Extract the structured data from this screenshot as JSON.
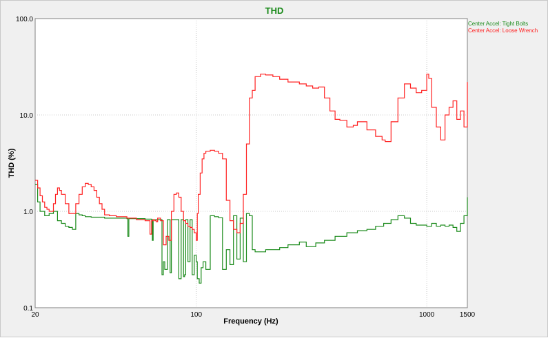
{
  "chart_data": {
    "type": "line",
    "title": "THD",
    "title_color": "#1a8a1a",
    "xlabel": "Frequency (Hz)",
    "ylabel": "THD (%)",
    "x_scale": "log",
    "y_scale": "log",
    "xlim": [
      20,
      1500
    ],
    "ylim": [
      0.1,
      100
    ],
    "x_ticks": [
      {
        "value": 20,
        "label": "20"
      },
      {
        "value": 100,
        "label": "100"
      },
      {
        "value": 1000,
        "label": "1000"
      },
      {
        "value": 1500,
        "label": "1500"
      }
    ],
    "y_ticks": [
      {
        "value": 0.1,
        "label": "0.1"
      },
      {
        "value": 1,
        "label": "1.0"
      },
      {
        "value": 10,
        "label": "10.0"
      },
      {
        "value": 100,
        "label": "100.0"
      }
    ],
    "grid": true,
    "legend_position": "top-right",
    "series": [
      {
        "name": "Center Accel: Tight Bolts",
        "color": "#1a8a1a",
        "x": [
          20,
          20.5,
          21,
          22,
          23,
          24,
          25,
          26,
          27,
          28,
          29,
          30,
          31,
          32,
          33,
          35,
          40,
          45,
          50,
          50.5,
          51,
          55,
          60,
          64,
          64.5,
          65,
          66,
          67,
          68,
          69,
          70,
          71,
          72,
          73,
          75,
          77,
          78,
          79,
          80,
          82,
          84,
          86,
          88,
          89,
          90,
          92,
          94,
          96,
          98,
          100,
          101,
          103,
          105,
          107,
          110,
          115,
          120,
          125,
          130,
          135,
          140,
          145,
          150,
          155,
          160,
          165,
          170,
          175,
          180,
          190,
          200,
          215,
          230,
          250,
          280,
          300,
          330,
          360,
          400,
          450,
          500,
          550,
          600,
          650,
          700,
          750,
          800,
          850,
          900,
          950,
          1000,
          1050,
          1100,
          1150,
          1200,
          1250,
          1300,
          1350,
          1400,
          1450,
          1500
        ],
        "y": [
          1.9,
          1.25,
          1.0,
          0.9,
          0.95,
          1.0,
          0.8,
          0.75,
          0.7,
          0.68,
          0.65,
          0.95,
          0.92,
          0.9,
          0.88,
          0.87,
          0.85,
          0.85,
          0.84,
          0.55,
          0.84,
          0.84,
          0.83,
          0.82,
          0.5,
          0.82,
          0.82,
          0.82,
          0.82,
          0.82,
          0.82,
          0.22,
          0.3,
          0.25,
          0.82,
          0.23,
          0.82,
          0.82,
          0.82,
          0.82,
          0.2,
          0.82,
          0.21,
          0.22,
          0.82,
          0.3,
          0.82,
          0.22,
          0.35,
          0.3,
          0.2,
          0.18,
          0.26,
          0.3,
          0.25,
          0.9,
          0.88,
          0.86,
          0.25,
          0.4,
          0.28,
          0.9,
          0.32,
          0.85,
          0.3,
          0.95,
          0.9,
          0.4,
          0.38,
          0.38,
          0.4,
          0.4,
          0.42,
          0.45,
          0.48,
          0.43,
          0.47,
          0.5,
          0.55,
          0.6,
          0.63,
          0.65,
          0.7,
          0.75,
          0.82,
          0.9,
          0.85,
          0.75,
          0.72,
          0.72,
          0.7,
          0.75,
          0.7,
          0.72,
          0.7,
          0.72,
          0.68,
          0.62,
          0.75,
          0.9,
          1.4
        ]
      },
      {
        "name": "Center Accel: Loose Wrench",
        "color": "#ff2020",
        "x": [
          20,
          20.5,
          21,
          21.5,
          22,
          22.5,
          23,
          23.5,
          24,
          24.5,
          25,
          25.5,
          26,
          27,
          28,
          29,
          30,
          31,
          32,
          33,
          34,
          35,
          36,
          37,
          38,
          39,
          40,
          42,
          45,
          50,
          55,
          60,
          62,
          63,
          64,
          65,
          66,
          67,
          68,
          70,
          72,
          74,
          76,
          78,
          80,
          82,
          84,
          86,
          88,
          90,
          92,
          94,
          96,
          98,
          100,
          101,
          102,
          104,
          106,
          108,
          110,
          115,
          120,
          125,
          130,
          135,
          140,
          145,
          150,
          155,
          160,
          165,
          170,
          175,
          180,
          190,
          200,
          215,
          230,
          250,
          280,
          300,
          320,
          340,
          360,
          380,
          400,
          420,
          450,
          480,
          500,
          550,
          600,
          640,
          660,
          700,
          750,
          800,
          850,
          900,
          950,
          1000,
          1020,
          1050,
          1100,
          1150,
          1200,
          1250,
          1300,
          1350,
          1400,
          1450,
          1500
        ],
        "y": [
          2.1,
          1.75,
          1.45,
          1.25,
          1.1,
          1.05,
          1.0,
          1.0,
          1.2,
          1.5,
          1.75,
          1.65,
          1.5,
          1.2,
          0.95,
          0.95,
          1.2,
          1.5,
          1.8,
          1.95,
          1.9,
          1.8,
          1.65,
          1.4,
          1.2,
          1.05,
          0.92,
          0.9,
          0.88,
          0.85,
          0.82,
          0.8,
          0.8,
          0.58,
          0.8,
          0.82,
          0.8,
          0.78,
          0.85,
          0.8,
          0.45,
          0.55,
          0.5,
          1.0,
          1.5,
          1.55,
          1.4,
          1.0,
          0.8,
          0.75,
          0.7,
          0.68,
          0.65,
          0.6,
          0.5,
          0.95,
          1.5,
          2.5,
          3.5,
          4.0,
          4.2,
          4.3,
          4.2,
          4.0,
          3.5,
          1.3,
          0.8,
          0.65,
          0.6,
          0.75,
          1.5,
          5.0,
          15.0,
          18.0,
          25.0,
          26.5,
          26.0,
          25.0,
          23.5,
          22.0,
          21.0,
          20.0,
          19.0,
          19.5,
          15.0,
          11.0,
          9.0,
          8.8,
          7.5,
          7.8,
          8.5,
          7.0,
          6.0,
          5.5,
          5.3,
          8.5,
          15.0,
          21.0,
          19.0,
          17.0,
          18.0,
          26.5,
          24.0,
          12.0,
          7.5,
          5.5,
          10.0,
          12.0,
          14.0,
          9.0,
          11.0,
          7.5,
          22.0
        ]
      }
    ]
  }
}
